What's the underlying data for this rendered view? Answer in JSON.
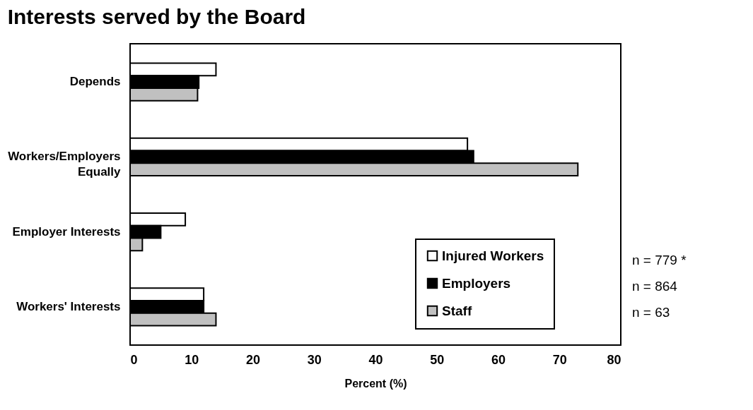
{
  "chart_data": {
    "type": "bar",
    "orientation": "horizontal",
    "title": "Interests served by the Board",
    "xlabel": "Percent (%)",
    "categories": [
      "Depends",
      "Workers/Employers Equally",
      "Employer Interests",
      "Workers' Interests"
    ],
    "series": [
      {
        "name": "Injured Workers",
        "color": "#ffffff",
        "values": [
          14,
          55,
          9,
          12
        ]
      },
      {
        "name": "Employers",
        "color": "#000000",
        "values": [
          11.2,
          56,
          5,
          12
        ]
      },
      {
        "name": "Staff",
        "color": "#c0c0c0",
        "values": [
          11,
          73,
          2,
          14
        ]
      }
    ],
    "xlim": [
      0,
      80
    ],
    "xticks": [
      0,
      10,
      20,
      30,
      40,
      50,
      60,
      70,
      80
    ],
    "grid": false,
    "legend": "bottom right",
    "annotations": [
      "n = 779 *",
      "n = 864",
      "n = 63"
    ]
  }
}
